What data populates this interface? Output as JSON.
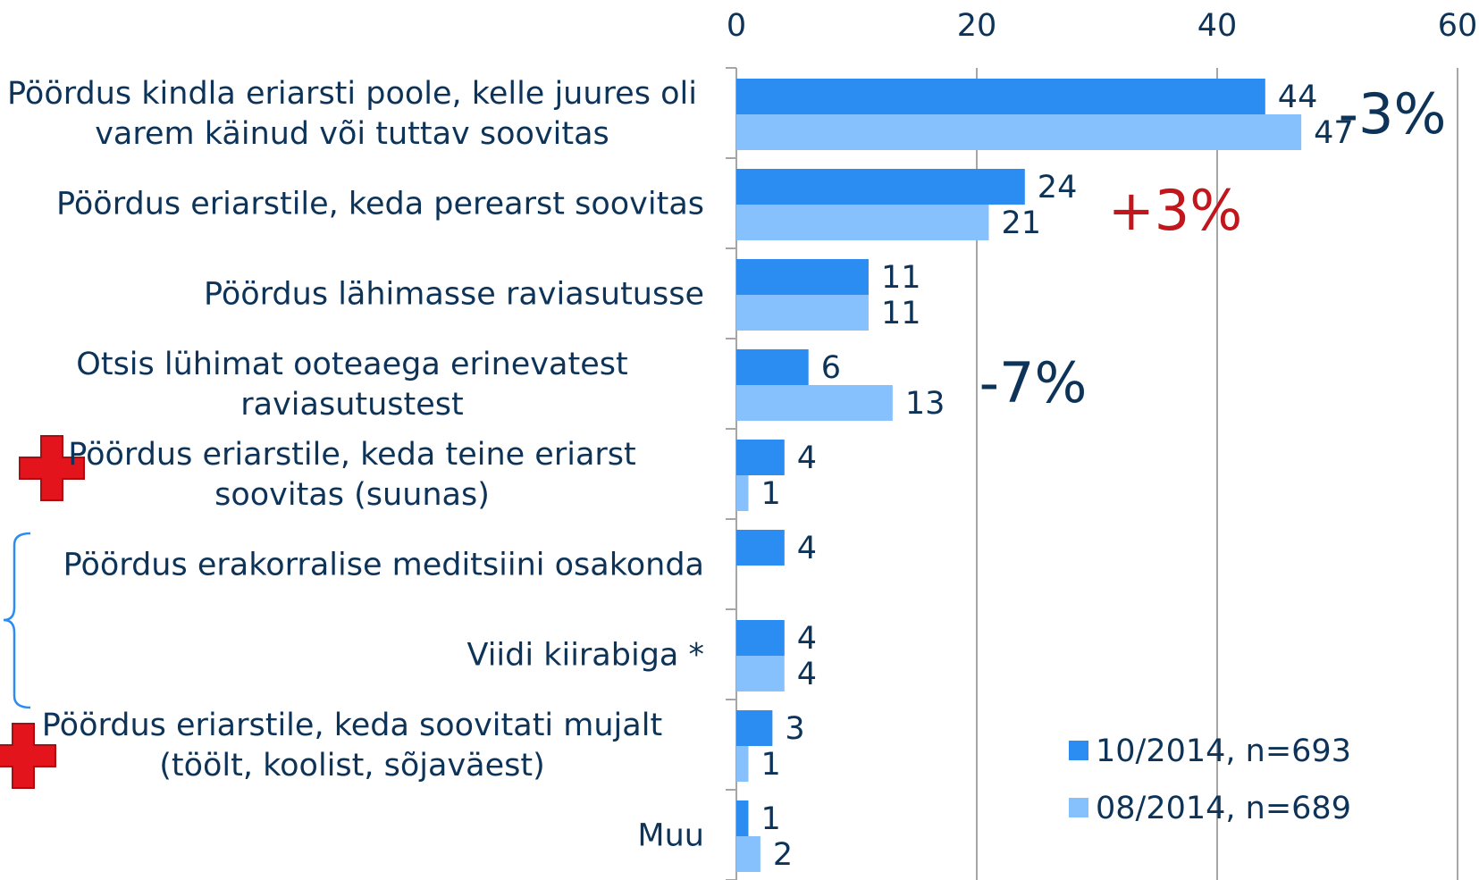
{
  "chart_data": {
    "type": "bar",
    "orientation": "horizontal",
    "categories": [
      "Pöördus kindla eriarsti poole, kelle juures oli varem käinud või tuttav soovitas",
      "Pöördus eriarstile, keda perearst soovitas",
      "Pöördus lähimasse raviasutusse",
      "Otsis lühimat ooteaega erinevatest raviasutustest",
      "Pöördus eriarstile, keda teine eriarst soovitas (suunas)",
      "Pöördus erakorralise meditsiini osakonda",
      "Viidi kiirabiga *",
      "Pöördus eriarstile, keda soovitati mujalt (töölt, koolist, sõjaväest)",
      "Muu"
    ],
    "series": [
      {
        "name": "10/2014, n=693",
        "color": "#2b8cf2",
        "values": [
          44,
          24,
          11,
          6,
          4,
          4,
          4,
          3,
          1
        ]
      },
      {
        "name": "08/2014, n=689",
        "color": "#86c0fd",
        "values": [
          47,
          21,
          11,
          13,
          1,
          null,
          4,
          1,
          2
        ]
      }
    ],
    "xlim": [
      0,
      60
    ],
    "xticks": [
      0,
      20,
      40,
      60
    ],
    "grid": true,
    "legend": "lower right",
    "annotations": [
      {
        "text": "-3%",
        "color": "#0d3358"
      },
      {
        "text": "+3%",
        "color": "#c0161c"
      },
      {
        "text": "-7%",
        "color": "#0d3358"
      }
    ]
  }
}
